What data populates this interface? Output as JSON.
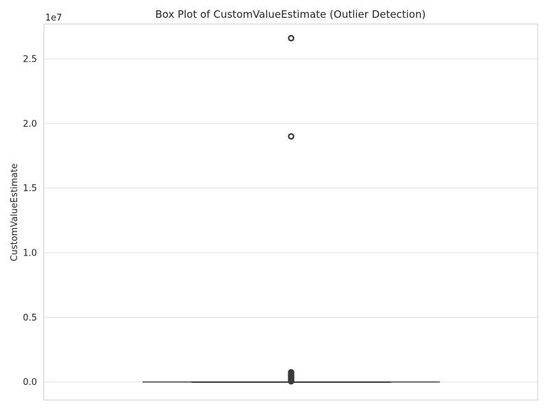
{
  "chart_data": {
    "type": "box",
    "title": "Box Plot of CustomValueEstimate (Outlier Detection)",
    "ylabel": "CustomValueEstimate",
    "xlabel": "",
    "y_offset_label": "1e7",
    "y_scale": 10000000,
    "ylim": [
      -1400000,
      27700000
    ],
    "yticks": [
      0,
      5000000,
      10000000,
      15000000,
      20000000,
      25000000
    ],
    "ytick_labels": [
      "0.0",
      "0.5",
      "1.0",
      "1.5",
      "2.0",
      "2.5"
    ],
    "grid": true,
    "orientation": "vertical",
    "box": {
      "whisker_low": 0,
      "q1": 0,
      "median": 0,
      "q3": 0,
      "whisker_high": 0
    },
    "outliers": [
      26600000,
      19000000,
      750000,
      650000,
      550000,
      450000,
      350000,
      250000,
      150000,
      50000
    ],
    "colors": {
      "box_line": "#3a3a3a",
      "box_fill": "#4c72b0",
      "grid": "#dddddd",
      "frame": "#cccccc"
    }
  }
}
